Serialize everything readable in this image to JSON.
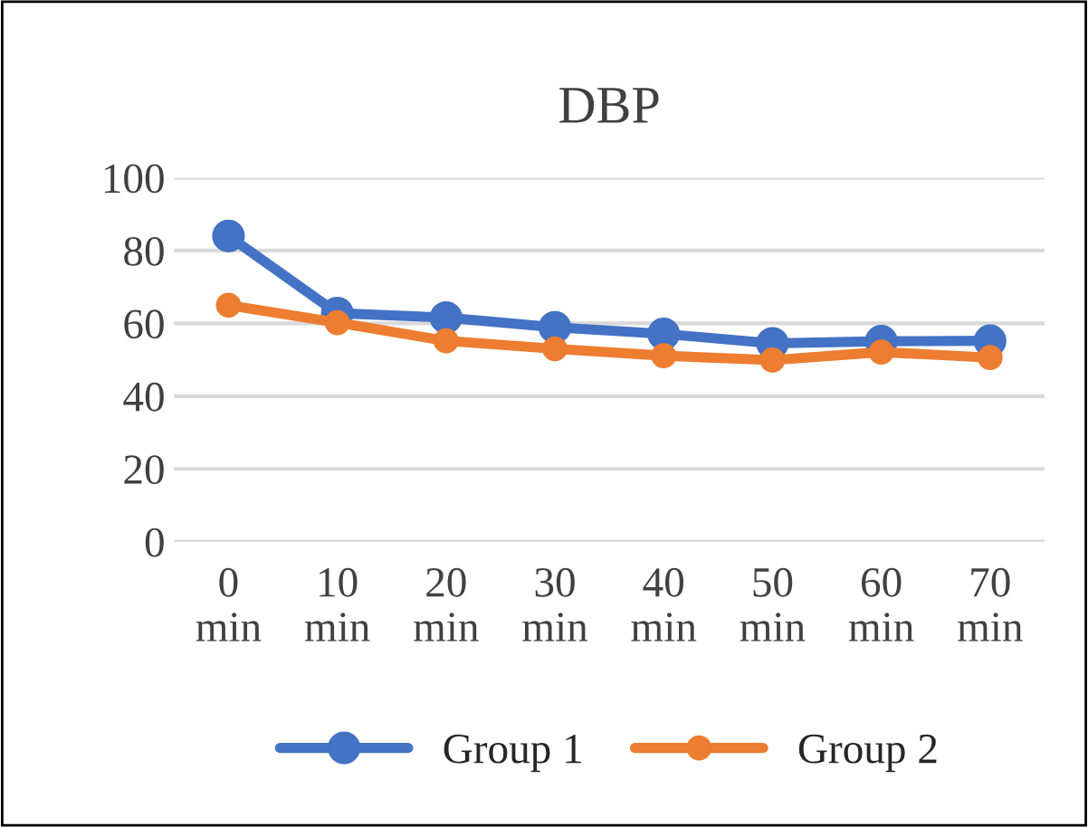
{
  "chart_data": {
    "type": "line",
    "title": "DBP",
    "categories": [
      "0\nmin",
      "10\nmin",
      "20\nmin",
      "30\nmin",
      "40\nmin",
      "50\nmin",
      "60\nmin",
      "70\nmin"
    ],
    "series": [
      {
        "name": "Group 1",
        "color": "#4472c4",
        "values": [
          84,
          62.8,
          61.6,
          58.9,
          57.1,
          54.5,
          55.1,
          55.2
        ]
      },
      {
        "name": "Group 2",
        "color": "#ed7d31",
        "values": [
          65,
          60.2,
          55.2,
          53,
          51.1,
          49.9,
          52.1,
          50.6
        ]
      }
    ],
    "ylim": [
      0,
      100
    ],
    "yticks": [
      0,
      20,
      40,
      60,
      80,
      100
    ],
    "grid": "y",
    "legend": "bottom",
    "marker": "circle",
    "line_style": "solid"
  }
}
